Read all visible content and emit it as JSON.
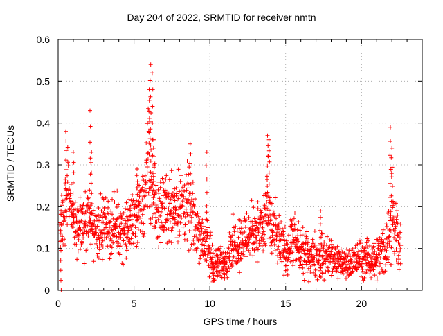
{
  "chart_data": {
    "type": "scatter",
    "title": "Day 204 of 2022, SRMTID for receiver nmtn",
    "xlabel": "GPS time / hours",
    "ylabel": "SRMTID / TECUs",
    "xlim": [
      0,
      24
    ],
    "ylim": [
      0,
      0.6
    ],
    "xticks": [
      "0",
      "5",
      "10",
      "15",
      "20"
    ],
    "yticks": [
      "0",
      "0.1",
      "0.2",
      "0.3",
      "0.4",
      "0.5",
      "0.6"
    ],
    "grid": true,
    "marker": "+",
    "color": "#ff0000",
    "series": [
      {
        "name": "SRMTID",
        "envelope": {
          "x": [
            0.1,
            0.4,
            0.6,
            1.0,
            1.5,
            2.0,
            2.5,
            3.0,
            3.5,
            4.0,
            4.5,
            5.0,
            5.5,
            5.8,
            6.0,
            6.2,
            6.5,
            7.0,
            7.5,
            8.0,
            8.5,
            9.0,
            9.5,
            10.0,
            10.3,
            10.6,
            11.0,
            11.5,
            12.0,
            12.5,
            13.0,
            13.5,
            13.8,
            14.0,
            14.5,
            15.0,
            15.5,
            16.0,
            16.5,
            17.0,
            17.5,
            18.0,
            18.5,
            19.0,
            19.5,
            20.0,
            20.5,
            21.0,
            21.5,
            21.8,
            22.0,
            22.3,
            22.6
          ],
          "mid": [
            0.15,
            0.2,
            0.24,
            0.16,
            0.15,
            0.17,
            0.14,
            0.16,
            0.15,
            0.15,
            0.14,
            0.18,
            0.19,
            0.24,
            0.3,
            0.24,
            0.18,
            0.2,
            0.2,
            0.2,
            0.2,
            0.16,
            0.13,
            0.09,
            0.06,
            0.06,
            0.07,
            0.11,
            0.12,
            0.13,
            0.15,
            0.14,
            0.2,
            0.15,
            0.12,
            0.09,
            0.12,
            0.09,
            0.08,
            0.08,
            0.08,
            0.08,
            0.07,
            0.06,
            0.07,
            0.08,
            0.07,
            0.08,
            0.1,
            0.13,
            0.18,
            0.14,
            0.12
          ],
          "spread": [
            0.04,
            0.06,
            0.07,
            0.05,
            0.05,
            0.06,
            0.05,
            0.05,
            0.05,
            0.05,
            0.05,
            0.06,
            0.06,
            0.09,
            0.12,
            0.08,
            0.06,
            0.06,
            0.06,
            0.07,
            0.07,
            0.06,
            0.05,
            0.05,
            0.03,
            0.03,
            0.03,
            0.04,
            0.05,
            0.05,
            0.05,
            0.05,
            0.09,
            0.06,
            0.05,
            0.04,
            0.05,
            0.04,
            0.04,
            0.04,
            0.04,
            0.04,
            0.03,
            0.03,
            0.03,
            0.04,
            0.03,
            0.04,
            0.05,
            0.06,
            0.1,
            0.06,
            0.05
          ]
        },
        "peaks": [
          {
            "x": 0.2,
            "y": 0.0
          },
          {
            "x": 0.5,
            "y": 0.38
          },
          {
            "x": 1.0,
            "y": 0.33
          },
          {
            "x": 2.1,
            "y": 0.43
          },
          {
            "x": 2.2,
            "y": 0.33
          },
          {
            "x": 5.2,
            "y": 0.29
          },
          {
            "x": 6.0,
            "y": 0.48
          },
          {
            "x": 6.1,
            "y": 0.54
          },
          {
            "x": 6.2,
            "y": 0.52
          },
          {
            "x": 6.3,
            "y": 0.36
          },
          {
            "x": 8.7,
            "y": 0.35
          },
          {
            "x": 9.8,
            "y": 0.33
          },
          {
            "x": 10.2,
            "y": 0.02
          },
          {
            "x": 13.8,
            "y": 0.37
          },
          {
            "x": 13.9,
            "y": 0.36
          },
          {
            "x": 17.3,
            "y": 0.19
          },
          {
            "x": 21.9,
            "y": 0.39
          },
          {
            "x": 22.0,
            "y": 0.34
          }
        ]
      }
    ]
  }
}
